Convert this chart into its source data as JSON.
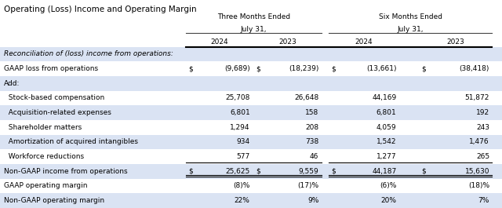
{
  "title": "Operating (Loss) Income and Operating Margin",
  "rows": [
    {
      "label": "Reconciliation of (loss) income from operations:",
      "values": [
        "",
        "",
        "",
        ""
      ],
      "dollar_signs": [
        false,
        false,
        false,
        false
      ],
      "style": "section_header",
      "bg": "#dae3f3",
      "top_line": false,
      "bottom_line": false
    },
    {
      "label": "GAAP loss from operations",
      "values": [
        "(9,689)",
        "(18,239)",
        "(13,661)",
        "(38,418)"
      ],
      "dollar_signs": [
        true,
        true,
        true,
        true
      ],
      "style": "normal",
      "bg": "#ffffff",
      "top_line": false,
      "bottom_line": false
    },
    {
      "label": "Add:",
      "values": [
        "",
        "",
        "",
        ""
      ],
      "dollar_signs": [
        false,
        false,
        false,
        false
      ],
      "style": "normal",
      "bg": "#dae3f3",
      "top_line": false,
      "bottom_line": false
    },
    {
      "label": "  Stock-based compensation",
      "values": [
        "25,708",
        "26,648",
        "44,169",
        "51,872"
      ],
      "dollar_signs": [
        false,
        false,
        false,
        false
      ],
      "style": "normal",
      "bg": "#ffffff",
      "top_line": false,
      "bottom_line": false
    },
    {
      "label": "  Acquisition-related expenses",
      "values": [
        "6,801",
        "158",
        "6,801",
        "192"
      ],
      "dollar_signs": [
        false,
        false,
        false,
        false
      ],
      "style": "normal",
      "bg": "#dae3f3",
      "top_line": false,
      "bottom_line": false
    },
    {
      "label": "  Shareholder matters",
      "values": [
        "1,294",
        "208",
        "4,059",
        "243"
      ],
      "dollar_signs": [
        false,
        false,
        false,
        false
      ],
      "style": "normal",
      "bg": "#ffffff",
      "top_line": false,
      "bottom_line": false
    },
    {
      "label": "  Amortization of acquired intangibles",
      "values": [
        "934",
        "738",
        "1,542",
        "1,476"
      ],
      "dollar_signs": [
        false,
        false,
        false,
        false
      ],
      "style": "normal",
      "bg": "#dae3f3",
      "top_line": false,
      "bottom_line": false
    },
    {
      "label": "  Workforce reductions",
      "values": [
        "577",
        "46",
        "1,277",
        "265"
      ],
      "dollar_signs": [
        false,
        false,
        false,
        false
      ],
      "style": "normal",
      "bg": "#ffffff",
      "top_line": false,
      "bottom_line": true
    },
    {
      "label": "Non-GAAP income from operations",
      "values": [
        "25,625",
        "9,559",
        "44,187",
        "15,630"
      ],
      "dollar_signs": [
        true,
        true,
        true,
        true
      ],
      "style": "normal",
      "bg": "#dae3f3",
      "top_line": false,
      "bottom_line": true
    },
    {
      "label": "GAAP operating margin",
      "values": [
        "(8)%",
        "(17)%",
        "(6)%",
        "(18)%"
      ],
      "dollar_signs": [
        false,
        false,
        false,
        false
      ],
      "style": "normal",
      "bg": "#ffffff",
      "top_line": false,
      "bottom_line": false
    },
    {
      "label": "Non-GAAP operating margin",
      "values": [
        "22%",
        "9%",
        "20%",
        "7%"
      ],
      "dollar_signs": [
        false,
        false,
        false,
        false
      ],
      "style": "normal",
      "bg": "#dae3f3",
      "top_line": false,
      "bottom_line": false
    }
  ],
  "bg_color": "#ffffff",
  "text_color": "#000000",
  "font_size": 6.5,
  "title_font_size": 7.5
}
